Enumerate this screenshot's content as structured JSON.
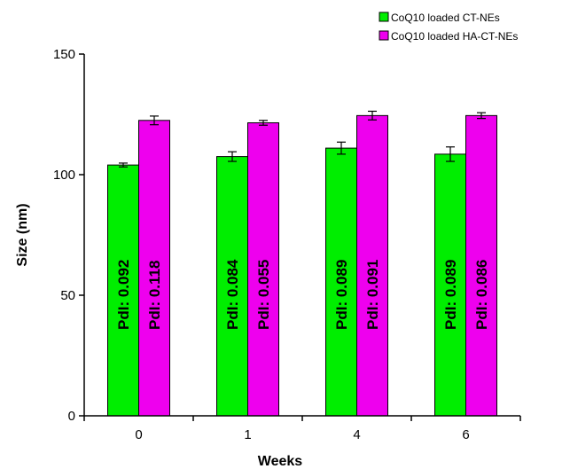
{
  "chart_data": {
    "type": "bar",
    "categories": [
      "0",
      "1",
      "4",
      "6"
    ],
    "xlabel": "Weeks",
    "ylabel": "Size (nm)",
    "ylim": [
      0,
      150
    ],
    "yticks": [
      0,
      50,
      100,
      150
    ],
    "legend_position": "top-right",
    "grid": false,
    "series": [
      {
        "name": "CoQ10 loaded CT-NEs",
        "color": "#00ee00",
        "values": [
          104,
          107.5,
          111,
          108.5
        ],
        "errors": [
          0.8,
          2,
          2.5,
          3
        ],
        "labels": [
          "PdI: 0.092",
          "PdI: 0.084",
          "PdI: 0.089",
          "PdI: 0.089"
        ]
      },
      {
        "name": "CoQ10 loaded HA-CT-NEs",
        "color": "#ee00ee",
        "values": [
          122.5,
          121.5,
          124.5,
          124.5
        ],
        "errors": [
          1.8,
          1,
          1.8,
          1.2
        ],
        "labels": [
          "PdI: 0.118",
          "PdI: 0.055",
          "PdI: 0.091",
          "PdI: 0.086"
        ]
      }
    ]
  }
}
